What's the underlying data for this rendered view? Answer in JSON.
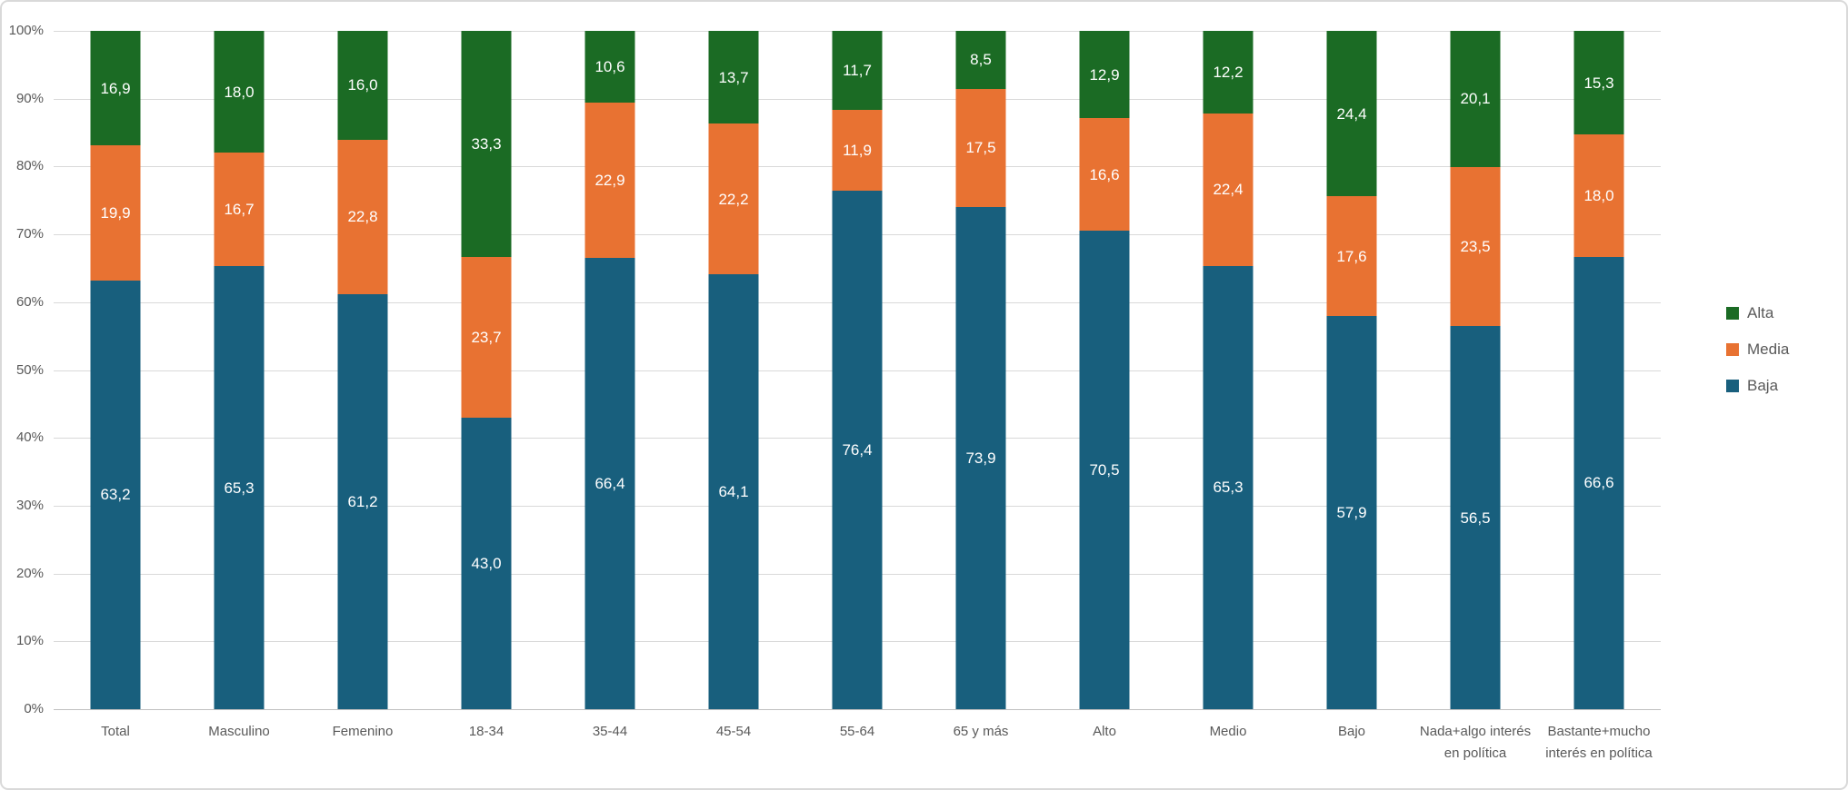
{
  "chart_data": {
    "type": "bar",
    "subtype": "stacked-100-percent",
    "title": "",
    "grid": true,
    "categories": [
      "Total",
      "Masculino",
      "Femenino",
      "18-34",
      "35-44",
      "45-54",
      "55-64",
      "65 y más",
      "Alto",
      "Medio",
      "Bajo",
      "Nada+algo interés en política",
      "Bastante+mucho interés en política"
    ],
    "series": [
      {
        "name": "Baja",
        "color": "#185F7D",
        "values": [
          63.2,
          65.3,
          61.2,
          43.0,
          66.4,
          64.1,
          76.4,
          73.9,
          70.5,
          65.3,
          57.9,
          56.5,
          66.6
        ]
      },
      {
        "name": "Media",
        "color": "#E87232",
        "values": [
          19.9,
          16.7,
          22.8,
          23.7,
          22.9,
          22.2,
          11.9,
          17.5,
          16.6,
          22.4,
          17.6,
          23.5,
          18.0
        ]
      },
      {
        "name": "Alta",
        "color": "#1B6B24",
        "values": [
          16.9,
          18.0,
          16.0,
          33.3,
          10.6,
          13.7,
          11.7,
          8.5,
          12.9,
          12.2,
          24.4,
          20.1,
          15.3
        ]
      }
    ],
    "stack_order_bottom_to_top": [
      "Baja",
      "Media",
      "Alta"
    ],
    "y_axis": {
      "min": 0,
      "max": 100,
      "tick_step": 10,
      "tick_labels": [
        "0%",
        "10%",
        "20%",
        "30%",
        "40%",
        "50%",
        "60%",
        "70%",
        "80%",
        "90%",
        "100%"
      ]
    },
    "legend": {
      "position": "right",
      "items": [
        "Alta",
        "Media",
        "Baja"
      ]
    },
    "data_labels": {
      "visible": true,
      "color": "#FFFFFF",
      "decimal_separator": ",",
      "decimals": 1
    },
    "colors": {
      "gridline": "#D9D9D9",
      "axis_line": "#BFBFBF",
      "axis_text": "#595959",
      "background": "#FFFFFF",
      "border": "#D9D9D9"
    }
  }
}
